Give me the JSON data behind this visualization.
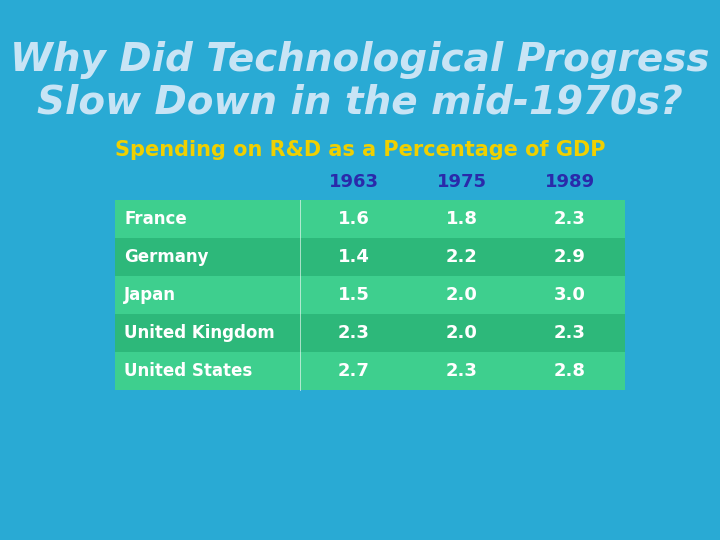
{
  "title_line1": "Why Did Technological Progress",
  "title_line2": "Slow Down in the mid-1970s?",
  "title_color": "#c8e4f5",
  "background_color": "#29aad4",
  "subtitle": "Spending on R&D as a Percentage of GDP",
  "subtitle_color": "#f0d000",
  "col_headers": [
    "1963",
    "1975",
    "1989"
  ],
  "col_header_color": "#2a2aaa",
  "rows": [
    {
      "country": "France",
      "vals": [
        "1.6",
        "1.8",
        "2.3"
      ]
    },
    {
      "country": "Germany",
      "vals": [
        "1.4",
        "2.2",
        "2.9"
      ]
    },
    {
      "country": "Japan",
      "vals": [
        "1.5",
        "2.0",
        "3.0"
      ]
    },
    {
      "country": "United Kingdom",
      "vals": [
        "2.3",
        "2.0",
        "2.3"
      ]
    },
    {
      "country": "United States",
      "vals": [
        "2.7",
        "2.3",
        "2.8"
      ]
    }
  ],
  "row_bg_light": "#3ecf8e",
  "row_bg_dark": "#2db87a",
  "table_text_color": "#ffffff"
}
